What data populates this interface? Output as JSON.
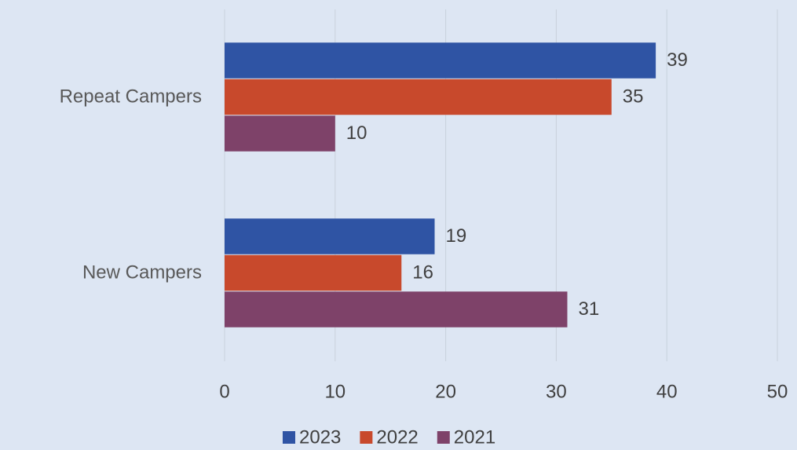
{
  "chart_data": {
    "type": "barh",
    "categories": [
      "Repeat Campers",
      "New Campers"
    ],
    "series": [
      {
        "name": "2023",
        "color": "#2f54a4",
        "values": [
          39,
          19
        ]
      },
      {
        "name": "2022",
        "color": "#c8492c",
        "values": [
          35,
          16
        ]
      },
      {
        "name": "2021",
        "color": "#7e4269",
        "values": [
          10,
          31
        ]
      }
    ],
    "xlim": [
      0,
      50
    ],
    "xticks": [
      0,
      10,
      20,
      30,
      40,
      50
    ],
    "grid": true,
    "legend": "bottom"
  }
}
